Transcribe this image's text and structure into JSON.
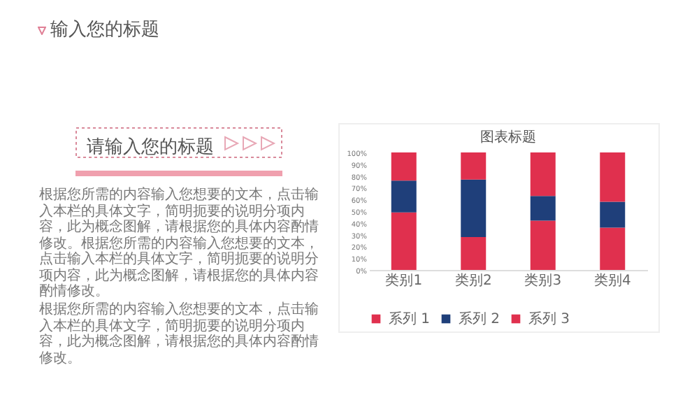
{
  "chart_data": {
    "type": "bar",
    "stacked": true,
    "title": "图表标题",
    "categories": [
      "类别1",
      "类别2",
      "类别3",
      "类别4"
    ],
    "series": [
      {
        "name": "系列 1",
        "color": "#e0304e",
        "values": [
          49,
          28,
          42,
          36
        ]
      },
      {
        "name": "系列 2",
        "color": "#1f3f7a",
        "values": [
          27,
          49,
          21,
          22
        ]
      },
      {
        "name": "系列 3",
        "color": "#e0304e",
        "values": [
          24,
          23,
          37,
          42
        ]
      }
    ],
    "ylim": [
      0,
      100
    ],
    "yticks": [
      {
        "value": 0,
        "label": "0%"
      },
      {
        "value": 10,
        "label": "10%"
      },
      {
        "value": 20,
        "label": "20%"
      },
      {
        "value": 30,
        "label": "30%"
      },
      {
        "value": 40,
        "label": "40%"
      },
      {
        "value": 50,
        "label": "50%"
      },
      {
        "value": 60,
        "label": "60%"
      },
      {
        "value": 70,
        "label": "70%"
      },
      {
        "value": 80,
        "label": "80%"
      },
      {
        "value": 90,
        "label": "90%"
      },
      {
        "value": 100,
        "label": "100%"
      }
    ],
    "legend": "bottom",
    "annotations": [
      "输入您的标题",
      "请输入您的标题",
      "根据您所需的内容输入您想要的文本，点击输入本栏的具体文字，简明扼要的说明分项内容，此为概念图解，请根据您的具体内容酌情修改。根据您所需的内容输入您想要的文本，点击输入本栏的具体文字，简明扼要的说明分项内容，此为概念图解，请根据您的具体内容酌情修改。",
      "根据您所需的内容输入您想要的文本，点击输入本栏的具体文字，简明扼要的说明分项内容，此为概念图解，请根据您的具体内容酌情修改。"
    ]
  }
}
